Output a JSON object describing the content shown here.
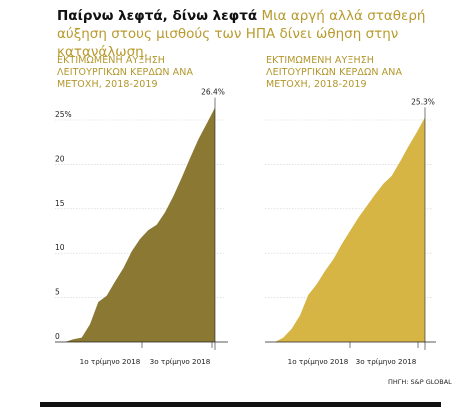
{
  "headline": {
    "bold": "Παίρνω λεφτά, δίνω λεφτά",
    "sub": "Μια αργή αλλά σταθερή αύξηση στους μισθούς των ΗΠΑ δίνει ώθηση στην κατανάλωση."
  },
  "source": "ΠΗΓΗ: S&P GLOBAL",
  "colors": {
    "left_fill": "#8a7833",
    "right_fill": "#d6b545",
    "grid": "#cfcfcf",
    "axis": "#222222"
  },
  "chart_data": [
    {
      "type": "area",
      "title": "ΕΚΤΙΜΩΜΕΝΗ ΑΥΞΗΣΗ ΛΕΙΤΟΥΡΓΙΚΩΝ ΚΕΡΔΩΝ ΑΝΑ ΜΕΤΟΧΗ, 2018-2019",
      "xlabel": "",
      "ylabel": "",
      "ylim": [
        0,
        25
      ],
      "yticks": [
        "0",
        "5",
        "10",
        "15",
        "20",
        "25%"
      ],
      "xticks": [
        "1ο τρίμηνο 2018",
        "3ο τρίμηνο 2018"
      ],
      "end_label": "26.4%",
      "color": "#8a7833",
      "values": [
        0,
        0.3,
        0.5,
        2.0,
        4.5,
        5.2,
        6.8,
        8.3,
        10.2,
        11.6,
        12.6,
        13.2,
        14.6,
        16.4,
        18.5,
        20.7,
        22.8,
        24.6,
        26.4
      ]
    },
    {
      "type": "area",
      "title": "ΕΚΤΙΜΩΜΕΝΗ ΑΥΞΗΣΗ ΛΕΙΤΟΥΡΓΙΚΩΝ ΚΕΡΔΩΝ ΑΝΑ ΜΕΤΟΧΗ, 2018-2019",
      "xlabel": "",
      "ylabel": "",
      "ylim": [
        0,
        25
      ],
      "xticks": [
        "1ο τρίμηνο 2018",
        "3ο τρίμηνο 2018"
      ],
      "end_label": "25.3%",
      "color": "#d6b545",
      "values": [
        0,
        0.5,
        1.5,
        3.0,
        5.3,
        6.5,
        8.0,
        9.3,
        11.0,
        12.5,
        14.0,
        15.3,
        16.6,
        17.8,
        18.7,
        20.3,
        22.0,
        23.6,
        25.3
      ]
    }
  ]
}
